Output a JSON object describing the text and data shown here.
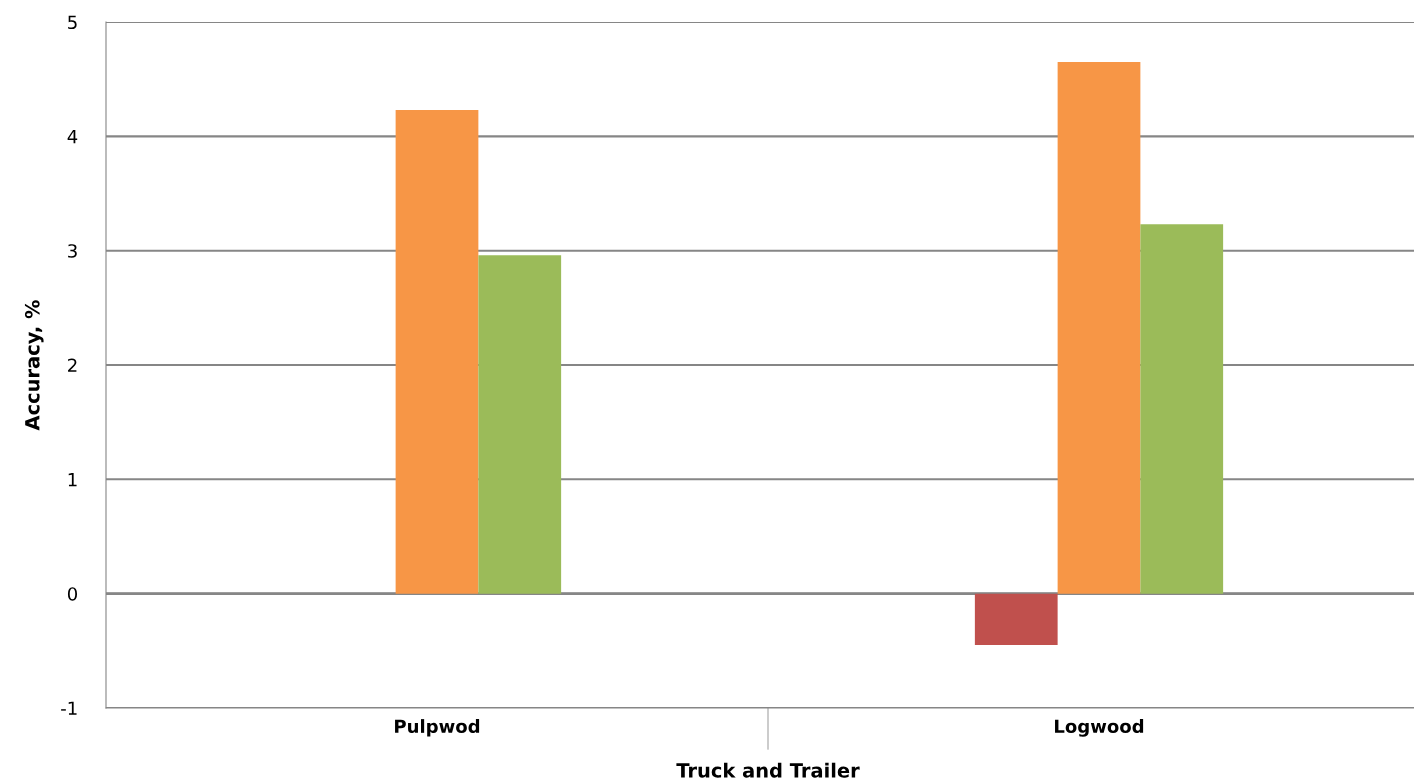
{
  "chart_data": {
    "type": "bar",
    "xlabel": "Truck and Trailer",
    "ylabel": "Accuracy, %",
    "categories": [
      "Pulpwod",
      "Logwood"
    ],
    "series": [
      {
        "color": "#c0504d",
        "values": [
          null,
          -0.45
        ]
      },
      {
        "color": "#f79646",
        "values": [
          4.23,
          4.65
        ]
      },
      {
        "color": "#9bbb59",
        "values": [
          2.96,
          3.23
        ]
      }
    ],
    "ylim": [
      -1,
      5
    ],
    "yticks": [
      -1,
      0,
      1,
      2,
      3,
      4,
      5
    ],
    "grid": "y"
  }
}
